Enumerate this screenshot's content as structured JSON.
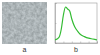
{
  "chart_data": {
    "type": "line",
    "annotations": [
      "a",
      "b"
    ],
    "x": [
      0,
      0.5,
      1,
      1.5,
      2,
      2.5,
      3,
      3.5,
      4,
      4.5,
      5,
      5.5,
      6,
      7,
      8,
      9,
      10
    ],
    "values": [
      0.08,
      0.1,
      0.15,
      0.35,
      0.7,
      0.9,
      0.85,
      0.8,
      0.6,
      0.45,
      0.35,
      0.28,
      0.22,
      0.16,
      0.12,
      0.1,
      0.08
    ],
    "color": "#33bb33",
    "xlim": [
      0,
      10
    ],
    "xticks": [
      0,
      2,
      4,
      6,
      8,
      10
    ],
    "ylim": [
      0,
      1
    ],
    "yticks": [
      0,
      0.5,
      1
    ],
    "tick_labels": false,
    "grid": false
  }
}
